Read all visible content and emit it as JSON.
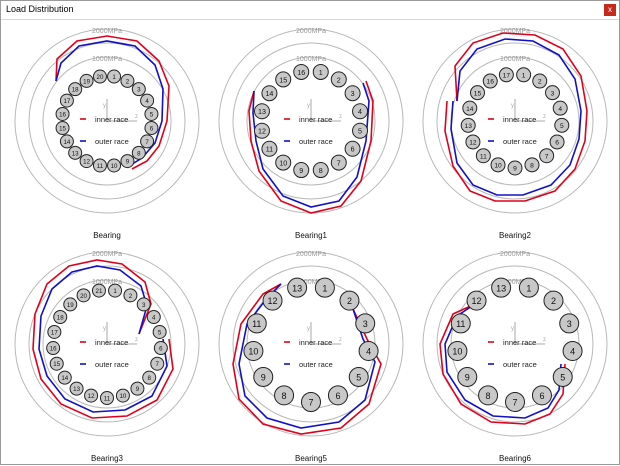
{
  "window": {
    "title": "Load Distribution",
    "close_label": "x",
    "close_color": "#c42b1c"
  },
  "ring_labels": [
    "2000MPa",
    "1000MPa"
  ],
  "axis_labels": {
    "y": "y",
    "z": "z"
  },
  "legend": [
    {
      "label": "inner race",
      "color": "#e0001b"
    },
    {
      "label": "outer race",
      "color": "#1010c8"
    }
  ],
  "panels": [
    {
      "name": "Bearing",
      "n": 20,
      "labels": [
        "1",
        "2",
        "3",
        "4",
        "5",
        "6",
        "7",
        "8",
        "9",
        "10",
        "11",
        "12",
        "13",
        "14",
        "15",
        "16",
        "17",
        "18",
        "19",
        "20"
      ]
    },
    {
      "name": "Bearing1",
      "n": 16,
      "labels": [
        "1",
        "2",
        "3",
        "4",
        "5",
        "6",
        "7",
        "8",
        "9",
        "10",
        "11",
        "12",
        "13",
        "14",
        "15",
        "16"
      ]
    },
    {
      "name": "Bearing2",
      "n": 17,
      "labels": [
        "1",
        "2",
        "3",
        "4",
        "5",
        "6",
        "7",
        "8",
        "9",
        "10",
        "11",
        "12",
        "13",
        "14",
        "15",
        "16",
        "17"
      ]
    },
    {
      "name": "Bearing3",
      "n": 21,
      "labels": [
        "1",
        "2",
        "3",
        "4",
        "5",
        "6",
        "7",
        "8",
        "9",
        "10",
        "11",
        "12",
        "13",
        "14",
        "15",
        "16",
        "17",
        "18",
        "19",
        "20",
        "21"
      ]
    },
    {
      "name": "Bearing5",
      "n": 13,
      "labels": [
        "1",
        "2",
        "3",
        "4",
        "5",
        "6",
        "7",
        "8",
        "9",
        "10",
        "11",
        "12",
        "13"
      ]
    },
    {
      "name": "Bearing6",
      "n": 13,
      "labels": [
        "1",
        "2",
        "3",
        "4",
        "5",
        "6",
        "7",
        "8",
        "9",
        "10",
        "11",
        "12",
        "13"
      ]
    }
  ]
}
